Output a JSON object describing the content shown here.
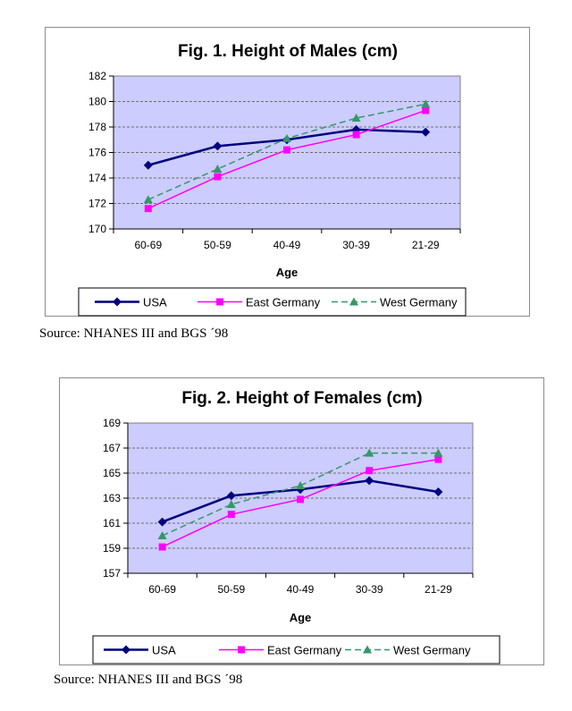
{
  "chart_data": [
    {
      "type": "line",
      "title": "Fig. 1. Height of Males (cm)",
      "xlabel": "Age",
      "ylabel": "",
      "categories": [
        "60-69",
        "50-59",
        "40-49",
        "30-39",
        "21-29"
      ],
      "ylim": [
        170,
        182
      ],
      "yticks": [
        "170",
        "172",
        "174",
        "176",
        "178",
        "180",
        "182"
      ],
      "grid": true,
      "legend_position": "bottom",
      "series": [
        {
          "name": "USA",
          "values": [
            175.0,
            176.5,
            177.0,
            177.8,
            177.6
          ],
          "color": "#000080",
          "marker": "diamond",
          "dash": "solid"
        },
        {
          "name": "East Germany",
          "values": [
            171.6,
            174.1,
            176.2,
            177.4,
            179.3
          ],
          "color": "#ff00ff",
          "marker": "square",
          "dash": "solid"
        },
        {
          "name": "West Germany",
          "values": [
            172.3,
            174.7,
            177.1,
            178.7,
            179.8
          ],
          "color": "#339966",
          "marker": "triangle",
          "dash": "dashed"
        }
      ],
      "source": "Source: NHANES III and BGS ´98"
    },
    {
      "type": "line",
      "title": "Fig. 2. Height of Females (cm)",
      "xlabel": "Age",
      "ylabel": "",
      "categories": [
        "60-69",
        "50-59",
        "40-49",
        "30-39",
        "21-29"
      ],
      "ylim": [
        157,
        169
      ],
      "yticks": [
        "157",
        "159",
        "161",
        "163",
        "165",
        "167",
        "169"
      ],
      "grid": true,
      "legend_position": "bottom",
      "series": [
        {
          "name": "USA",
          "values": [
            161.1,
            163.2,
            163.7,
            164.4,
            163.5
          ],
          "color": "#000080",
          "marker": "diamond",
          "dash": "solid"
        },
        {
          "name": "East Germany",
          "values": [
            159.1,
            161.7,
            162.9,
            165.2,
            166.1
          ],
          "color": "#ff00ff",
          "marker": "square",
          "dash": "solid"
        },
        {
          "name": "West Germany",
          "values": [
            160.0,
            162.5,
            164.0,
            166.6,
            166.6
          ],
          "color": "#339966",
          "marker": "triangle",
          "dash": "dashed"
        }
      ],
      "source": "Source: NHANES III and BGS ´98"
    }
  ],
  "colors": {
    "plot_background": "#ccccff",
    "gridline": "#6e6e6e",
    "frame_border": "#8c8c8c"
  }
}
